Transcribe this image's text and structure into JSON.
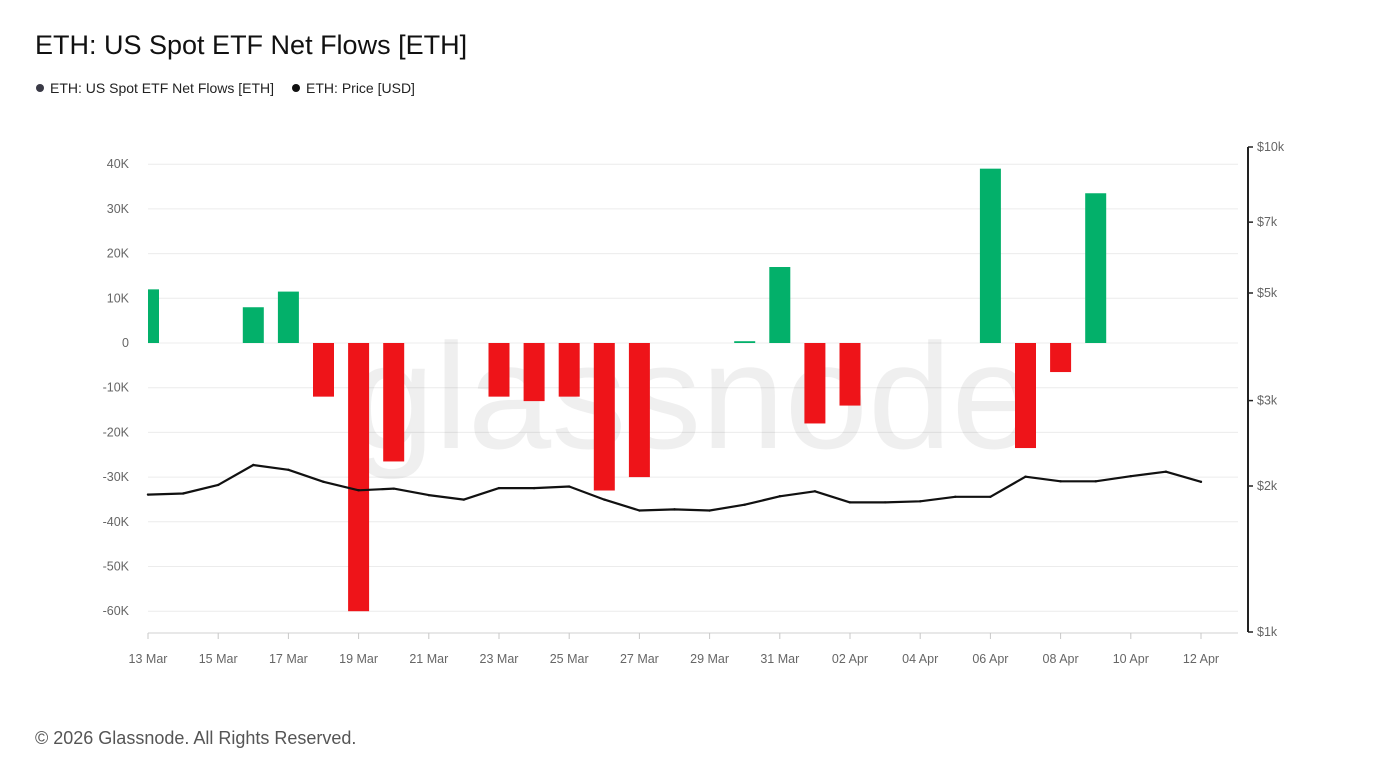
{
  "title": "ETH: US Spot ETF Net Flows [ETH]",
  "legend": [
    {
      "label": "ETH: US Spot ETF Net Flows [ETH]",
      "color": "#3a3a46"
    },
    {
      "label": "ETH: Price [USD]",
      "color": "#111111"
    }
  ],
  "watermark": "glassnode",
  "footer": "© 2026 Glassnode. All Rights Reserved.",
  "colors": {
    "positive": "#03b06a",
    "negative": "#ee1419",
    "price_line": "#111111"
  },
  "chart_data": {
    "type": "bar",
    "title": "ETH: US Spot ETF Net Flows [ETH]",
    "x": [
      "13 Mar",
      "14 Mar",
      "15 Mar",
      "16 Mar",
      "17 Mar",
      "18 Mar",
      "19 Mar",
      "20 Mar",
      "21 Mar",
      "22 Mar",
      "23 Mar",
      "24 Mar",
      "25 Mar",
      "26 Mar",
      "27 Mar",
      "28 Mar",
      "29 Mar",
      "30 Mar",
      "31 Mar",
      "01 Apr",
      "02 Apr",
      "03 Apr",
      "04 Apr",
      "05 Apr",
      "06 Apr",
      "07 Apr",
      "08 Apr",
      "09 Apr",
      "10 Apr",
      "11 Apr",
      "12 Apr"
    ],
    "x_tick_labels": [
      "13 Mar",
      "15 Mar",
      "17 Mar",
      "19 Mar",
      "21 Mar",
      "23 Mar",
      "25 Mar",
      "27 Mar",
      "29 Mar",
      "31 Mar",
      "02 Apr",
      "04 Apr",
      "06 Apr",
      "08 Apr",
      "10 Apr",
      "12 Apr"
    ],
    "series": [
      {
        "name": "ETH: US Spot ETF Net Flows [ETH]",
        "axis": "left",
        "type": "bar",
        "values": [
          12000,
          null,
          null,
          8000,
          11500,
          -12000,
          -60000,
          -26500,
          null,
          null,
          -12000,
          -13000,
          -12000,
          -33000,
          -30000,
          null,
          null,
          400,
          17000,
          -18000,
          -14000,
          null,
          null,
          null,
          39000,
          -23500,
          -6500,
          33500,
          null,
          null,
          null
        ]
      },
      {
        "name": "ETH: Price [USD]",
        "axis": "right",
        "type": "line",
        "values": [
          1920,
          1930,
          2010,
          2210,
          2160,
          2040,
          1960,
          1975,
          1915,
          1875,
          1980,
          1980,
          1995,
          1875,
          1780,
          1790,
          1780,
          1830,
          1905,
          1950,
          1850,
          1850,
          1860,
          1900,
          1900,
          2090,
          2045,
          2045,
          2095,
          2140,
          2040
        ]
      }
    ],
    "y_left": {
      "ticks": [
        40000,
        30000,
        20000,
        10000,
        0,
        -10000,
        -20000,
        -30000,
        -40000,
        -50000,
        -60000
      ],
      "tick_labels": [
        "40K",
        "30K",
        "20K",
        "10K",
        "0",
        "-10K",
        "-20K",
        "-30K",
        "-40K",
        "-50K",
        "-60K"
      ],
      "range": [
        -65000,
        45000
      ]
    },
    "y_right": {
      "scale": "log",
      "tick_values": [
        10000,
        7000,
        5000,
        3000,
        2000,
        1000
      ],
      "tick_labels": [
        "$10k",
        "$7k",
        "$5k",
        "$3k",
        "$2k",
        "$1k"
      ],
      "range": [
        1000,
        10000
      ]
    },
    "grid": true,
    "legend_position": "top-left"
  }
}
